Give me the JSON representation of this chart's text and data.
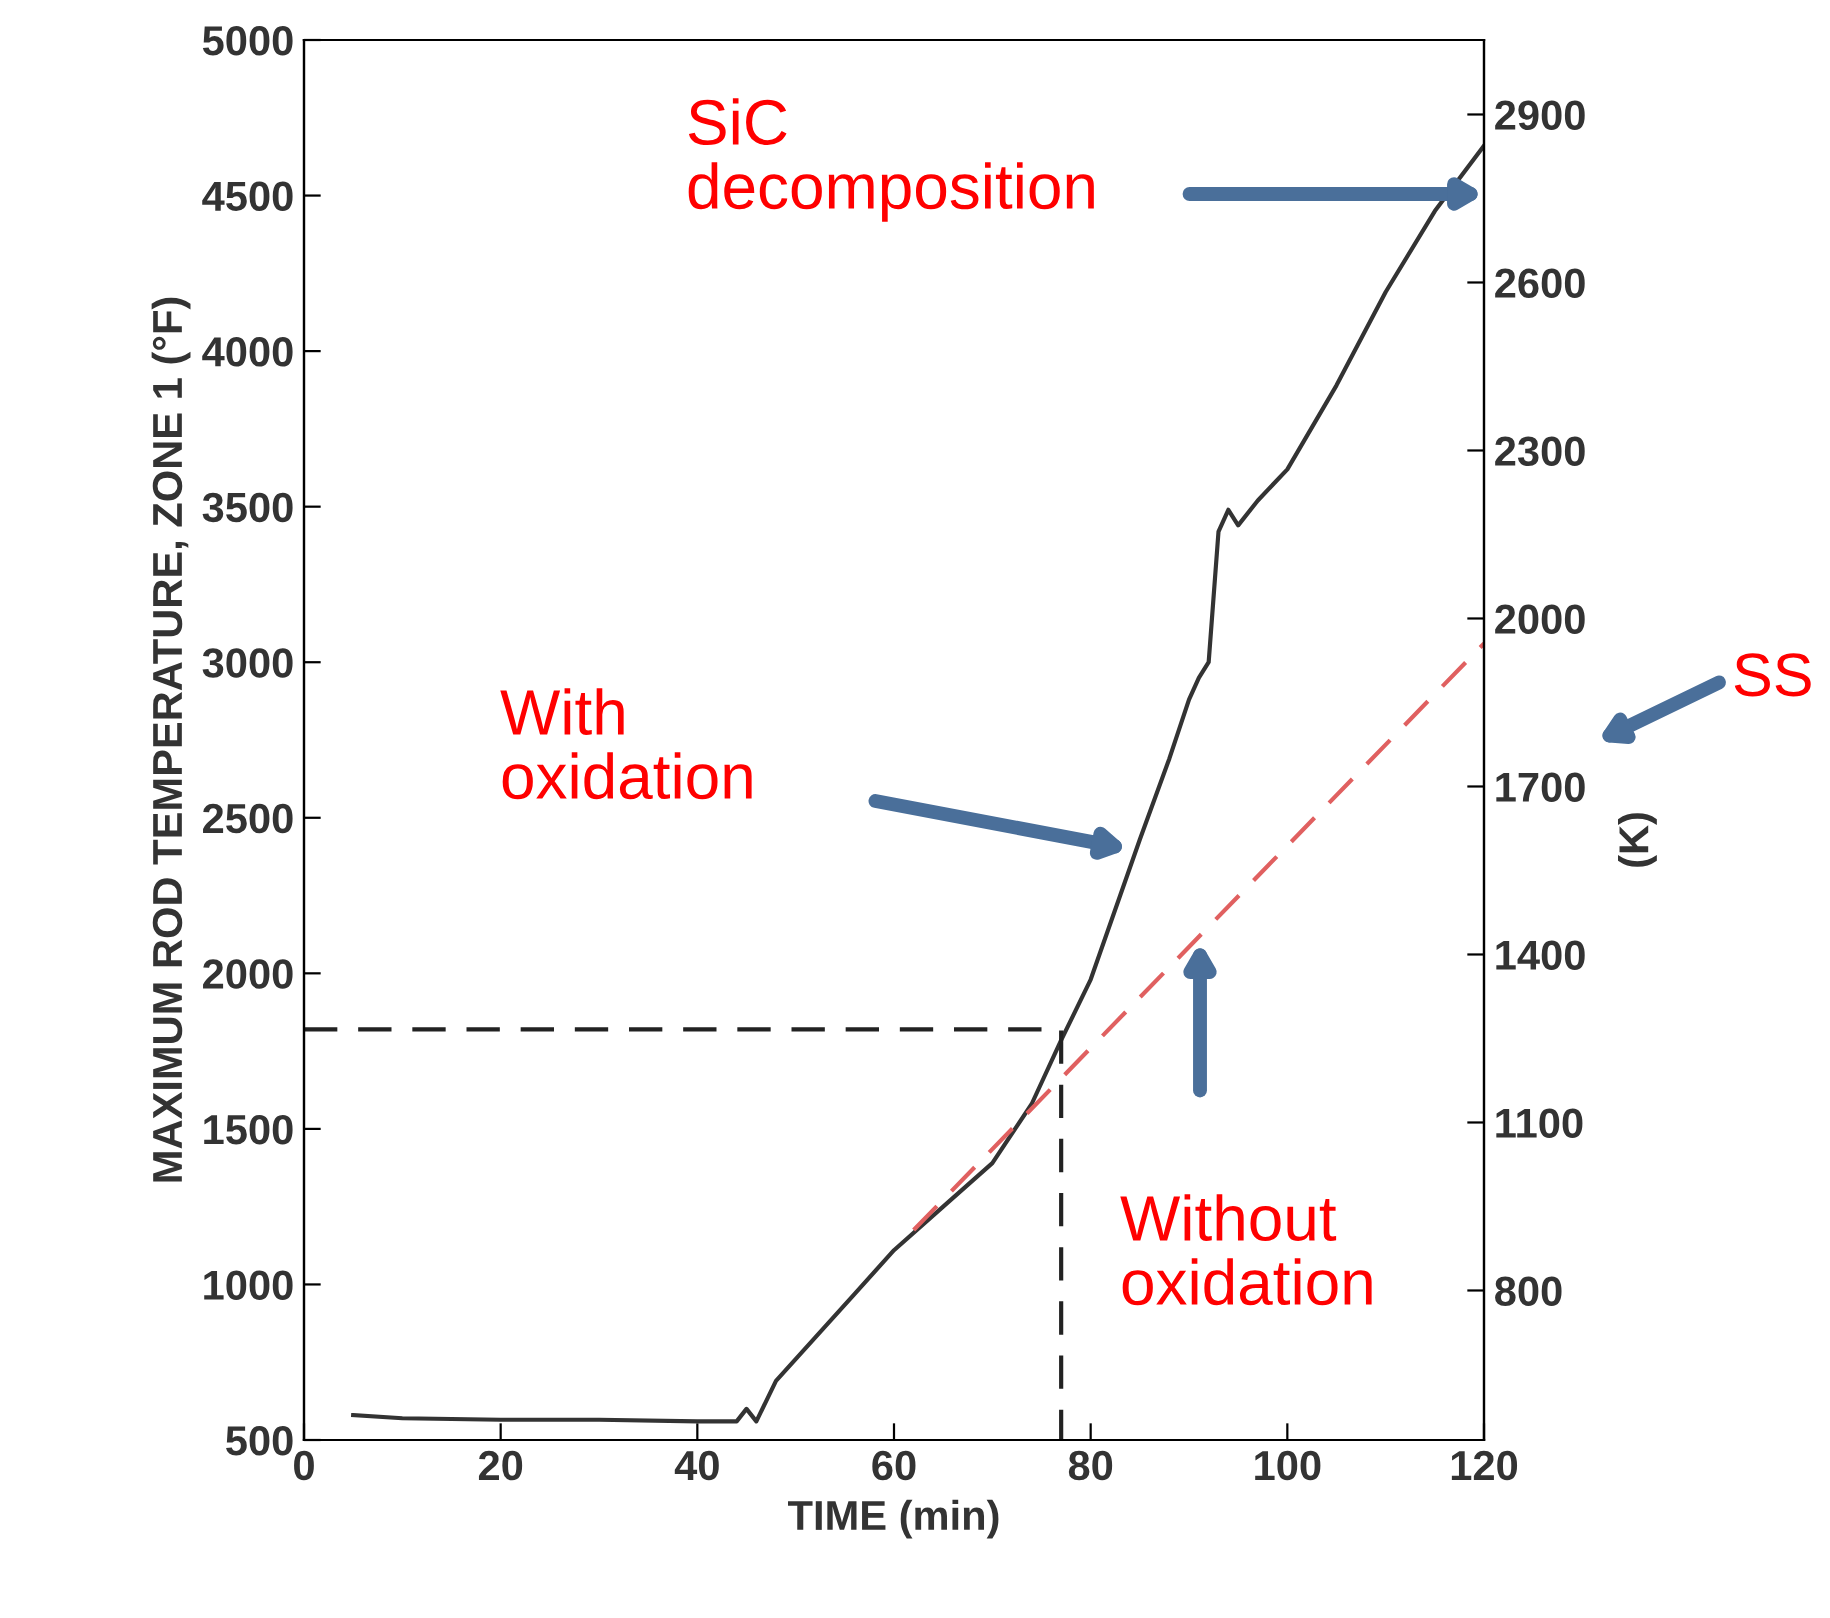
{
  "chart_data": {
    "type": "line",
    "xlabel": "TIME (min)",
    "ylabel": "MAXIMUM ROD TEMPERATURE, ZONE 1 (°F)",
    "y2label": "(K)",
    "series": [
      {
        "color": "#333333",
        "line_style": "solid",
        "x": [
          5,
          10,
          20,
          30,
          40,
          44,
          45,
          46,
          48,
          52,
          56,
          60,
          65,
          70,
          74,
          77,
          80,
          83,
          85,
          88,
          90,
          91,
          92,
          93,
          94,
          95,
          97,
          100,
          105,
          110,
          115,
          120
        ],
        "values": [
          580,
          570,
          565,
          565,
          560,
          560,
          600,
          560,
          690,
          830,
          970,
          1110,
          1250,
          1390,
          1580,
          1785,
          1980,
          2250,
          2430,
          2690,
          2880,
          2950,
          3000,
          3420,
          3490,
          3440,
          3520,
          3620,
          3890,
          4190,
          4450,
          4660
        ]
      },
      {
        "color": "#e06060",
        "line_style": "dashed",
        "x": [
          62,
          120
        ],
        "values": [
          1175,
          3060
        ]
      },
      {
        "color": "#222222",
        "line_style": "dashed",
        "x": [
          0,
          77,
          77
        ],
        "values": [
          1820,
          1820,
          500
        ]
      }
    ],
    "xlim": [
      0,
      120
    ],
    "xticks": [
      0,
      20,
      40,
      60,
      80,
      100,
      120
    ],
    "ylim": [
      500,
      5000
    ],
    "yticks": [
      500,
      1000,
      1500,
      2000,
      2500,
      3000,
      3500,
      4000,
      4500,
      5000
    ],
    "y2lim": [
      533,
      3033
    ],
    "y2ticks": [
      800,
      1100,
      1400,
      1700,
      2000,
      2300,
      2600,
      2900
    ],
    "annotations": [
      "SiC\ndecomposition",
      "With\noxidation",
      "Without\noxidation",
      "SS"
    ],
    "grid": false,
    "legend": false
  }
}
